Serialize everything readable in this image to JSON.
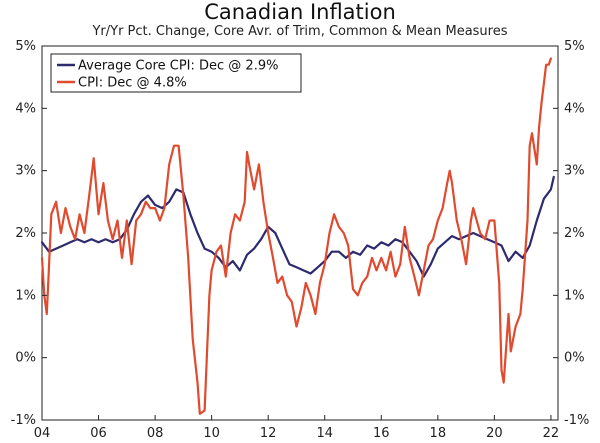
{
  "chart_data": {
    "type": "line",
    "title": "Canadian Inflation",
    "subtitle": "Yr/Yr Pct. Change, Core Avr. of Trim, Common & Mean Measures",
    "xlabel": "",
    "ylabel": "",
    "xlim": [
      2004.0,
      2022.25
    ],
    "ylim": [
      -1,
      5
    ],
    "x_ticks": [
      2004,
      2006,
      2008,
      2010,
      2012,
      2014,
      2016,
      2018,
      2020,
      2022
    ],
    "x_tick_labels": [
      "04",
      "06",
      "08",
      "10",
      "12",
      "14",
      "16",
      "18",
      "20",
      "22"
    ],
    "y_ticks": [
      -1,
      0,
      1,
      2,
      3,
      4,
      5
    ],
    "y_tick_labels_left": [
      "-1%",
      "0%",
      "1%",
      "2%",
      "3%",
      "4%",
      "5%"
    ],
    "y_tick_labels_right": [
      "-1%",
      "0%",
      "1%",
      "2%",
      "3%",
      "4%",
      "5%"
    ],
    "legend_position": "top-left",
    "series": [
      {
        "name": "Average Core CPI: Dec @ 2.9%",
        "color": "#2e2a6e",
        "points": [
          [
            2004.0,
            1.85
          ],
          [
            2004.25,
            1.7
          ],
          [
            2004.5,
            1.75
          ],
          [
            2004.75,
            1.8
          ],
          [
            2005.0,
            1.85
          ],
          [
            2005.25,
            1.9
          ],
          [
            2005.5,
            1.85
          ],
          [
            2005.75,
            1.9
          ],
          [
            2006.0,
            1.85
          ],
          [
            2006.25,
            1.9
          ],
          [
            2006.5,
            1.85
          ],
          [
            2006.75,
            1.9
          ],
          [
            2007.0,
            2.05
          ],
          [
            2007.25,
            2.3
          ],
          [
            2007.5,
            2.5
          ],
          [
            2007.75,
            2.6
          ],
          [
            2008.0,
            2.45
          ],
          [
            2008.25,
            2.4
          ],
          [
            2008.5,
            2.5
          ],
          [
            2008.75,
            2.7
          ],
          [
            2009.0,
            2.65
          ],
          [
            2009.25,
            2.3
          ],
          [
            2009.5,
            2.0
          ],
          [
            2009.75,
            1.75
          ],
          [
            2010.0,
            1.7
          ],
          [
            2010.25,
            1.6
          ],
          [
            2010.5,
            1.45
          ],
          [
            2010.75,
            1.55
          ],
          [
            2011.0,
            1.4
          ],
          [
            2011.25,
            1.65
          ],
          [
            2011.5,
            1.75
          ],
          [
            2011.75,
            1.9
          ],
          [
            2012.0,
            2.1
          ],
          [
            2012.25,
            2.0
          ],
          [
            2012.5,
            1.75
          ],
          [
            2012.75,
            1.5
          ],
          [
            2013.0,
            1.45
          ],
          [
            2013.25,
            1.4
          ],
          [
            2013.5,
            1.35
          ],
          [
            2013.75,
            1.45
          ],
          [
            2014.0,
            1.55
          ],
          [
            2014.25,
            1.7
          ],
          [
            2014.5,
            1.7
          ],
          [
            2014.75,
            1.6
          ],
          [
            2015.0,
            1.7
          ],
          [
            2015.25,
            1.65
          ],
          [
            2015.5,
            1.8
          ],
          [
            2015.75,
            1.75
          ],
          [
            2016.0,
            1.85
          ],
          [
            2016.25,
            1.8
          ],
          [
            2016.5,
            1.9
          ],
          [
            2016.75,
            1.85
          ],
          [
            2017.0,
            1.7
          ],
          [
            2017.25,
            1.55
          ],
          [
            2017.5,
            1.3
          ],
          [
            2017.75,
            1.5
          ],
          [
            2018.0,
            1.75
          ],
          [
            2018.25,
            1.85
          ],
          [
            2018.5,
            1.95
          ],
          [
            2018.75,
            1.9
          ],
          [
            2019.0,
            1.95
          ],
          [
            2019.25,
            2.0
          ],
          [
            2019.5,
            1.95
          ],
          [
            2019.75,
            1.9
          ],
          [
            2020.0,
            1.85
          ],
          [
            2020.25,
            1.8
          ],
          [
            2020.5,
            1.55
          ],
          [
            2020.75,
            1.7
          ],
          [
            2021.0,
            1.6
          ],
          [
            2021.25,
            1.8
          ],
          [
            2021.5,
            2.2
          ],
          [
            2021.75,
            2.55
          ],
          [
            2022.0,
            2.7
          ],
          [
            2022.1,
            2.9
          ]
        ]
      },
      {
        "name": "CPI: Dec @ 4.8%",
        "color": "#e04a2e",
        "points": [
          [
            2004.0,
            1.6
          ],
          [
            2004.08,
            1.0
          ],
          [
            2004.17,
            0.7
          ],
          [
            2004.25,
            1.5
          ],
          [
            2004.33,
            2.3
          ],
          [
            2004.5,
            2.5
          ],
          [
            2004.67,
            2.0
          ],
          [
            2004.83,
            2.4
          ],
          [
            2005.0,
            2.1
          ],
          [
            2005.17,
            1.9
          ],
          [
            2005.33,
            2.3
          ],
          [
            2005.5,
            2.0
          ],
          [
            2005.67,
            2.6
          ],
          [
            2005.83,
            3.2
          ],
          [
            2006.0,
            2.3
          ],
          [
            2006.17,
            2.8
          ],
          [
            2006.33,
            2.2
          ],
          [
            2006.5,
            1.9
          ],
          [
            2006.67,
            2.2
          ],
          [
            2006.83,
            1.6
          ],
          [
            2007.0,
            2.2
          ],
          [
            2007.17,
            1.5
          ],
          [
            2007.33,
            2.2
          ],
          [
            2007.5,
            2.3
          ],
          [
            2007.67,
            2.5
          ],
          [
            2007.83,
            2.4
          ],
          [
            2008.0,
            2.4
          ],
          [
            2008.17,
            2.2
          ],
          [
            2008.33,
            2.4
          ],
          [
            2008.5,
            3.1
          ],
          [
            2008.67,
            3.4
          ],
          [
            2008.83,
            3.4
          ],
          [
            2009.0,
            2.6
          ],
          [
            2009.17,
            1.6
          ],
          [
            2009.33,
            0.3
          ],
          [
            2009.5,
            -0.4
          ],
          [
            2009.58,
            -0.9
          ],
          [
            2009.75,
            -0.85
          ],
          [
            2009.92,
            1.0
          ],
          [
            2010.0,
            1.4
          ],
          [
            2010.17,
            1.7
          ],
          [
            2010.33,
            1.8
          ],
          [
            2010.5,
            1.3
          ],
          [
            2010.67,
            2.0
          ],
          [
            2010.83,
            2.3
          ],
          [
            2011.0,
            2.2
          ],
          [
            2011.17,
            2.5
          ],
          [
            2011.25,
            3.3
          ],
          [
            2011.33,
            3.1
          ],
          [
            2011.5,
            2.7
          ],
          [
            2011.67,
            3.1
          ],
          [
            2011.83,
            2.5
          ],
          [
            2012.0,
            2.0
          ],
          [
            2012.17,
            1.6
          ],
          [
            2012.33,
            1.2
          ],
          [
            2012.5,
            1.3
          ],
          [
            2012.67,
            1.0
          ],
          [
            2012.83,
            0.9
          ],
          [
            2013.0,
            0.5
          ],
          [
            2013.17,
            0.8
          ],
          [
            2013.33,
            1.2
          ],
          [
            2013.5,
            1.0
          ],
          [
            2013.67,
            0.7
          ],
          [
            2013.83,
            1.2
          ],
          [
            2014.0,
            1.5
          ],
          [
            2014.17,
            2.0
          ],
          [
            2014.33,
            2.3
          ],
          [
            2014.5,
            2.1
          ],
          [
            2014.67,
            2.0
          ],
          [
            2014.83,
            1.8
          ],
          [
            2015.0,
            1.1
          ],
          [
            2015.17,
            1.0
          ],
          [
            2015.33,
            1.2
          ],
          [
            2015.5,
            1.3
          ],
          [
            2015.67,
            1.6
          ],
          [
            2015.83,
            1.4
          ],
          [
            2016.0,
            1.6
          ],
          [
            2016.17,
            1.4
          ],
          [
            2016.33,
            1.7
          ],
          [
            2016.5,
            1.3
          ],
          [
            2016.67,
            1.5
          ],
          [
            2016.83,
            2.1
          ],
          [
            2017.0,
            1.6
          ],
          [
            2017.17,
            1.3
          ],
          [
            2017.33,
            1.0
          ],
          [
            2017.5,
            1.4
          ],
          [
            2017.67,
            1.8
          ],
          [
            2017.83,
            1.9
          ],
          [
            2018.0,
            2.2
          ],
          [
            2018.17,
            2.4
          ],
          [
            2018.33,
            2.8
          ],
          [
            2018.42,
            3.0
          ],
          [
            2018.5,
            2.8
          ],
          [
            2018.67,
            2.2
          ],
          [
            2018.83,
            1.9
          ],
          [
            2019.0,
            1.5
          ],
          [
            2019.17,
            2.2
          ],
          [
            2019.25,
            2.4
          ],
          [
            2019.5,
            2.0
          ],
          [
            2019.67,
            1.9
          ],
          [
            2019.83,
            2.2
          ],
          [
            2020.0,
            2.2
          ],
          [
            2020.17,
            1.2
          ],
          [
            2020.25,
            -0.2
          ],
          [
            2020.33,
            -0.4
          ],
          [
            2020.5,
            0.7
          ],
          [
            2020.58,
            0.1
          ],
          [
            2020.75,
            0.5
          ],
          [
            2020.92,
            0.7
          ],
          [
            2021.0,
            1.1
          ],
          [
            2021.17,
            2.2
          ],
          [
            2021.25,
            3.4
          ],
          [
            2021.33,
            3.6
          ],
          [
            2021.5,
            3.1
          ],
          [
            2021.58,
            3.7
          ],
          [
            2021.67,
            4.1
          ],
          [
            2021.75,
            4.4
          ],
          [
            2021.83,
            4.7
          ],
          [
            2021.92,
            4.7
          ],
          [
            2022.0,
            4.8
          ]
        ]
      }
    ]
  }
}
